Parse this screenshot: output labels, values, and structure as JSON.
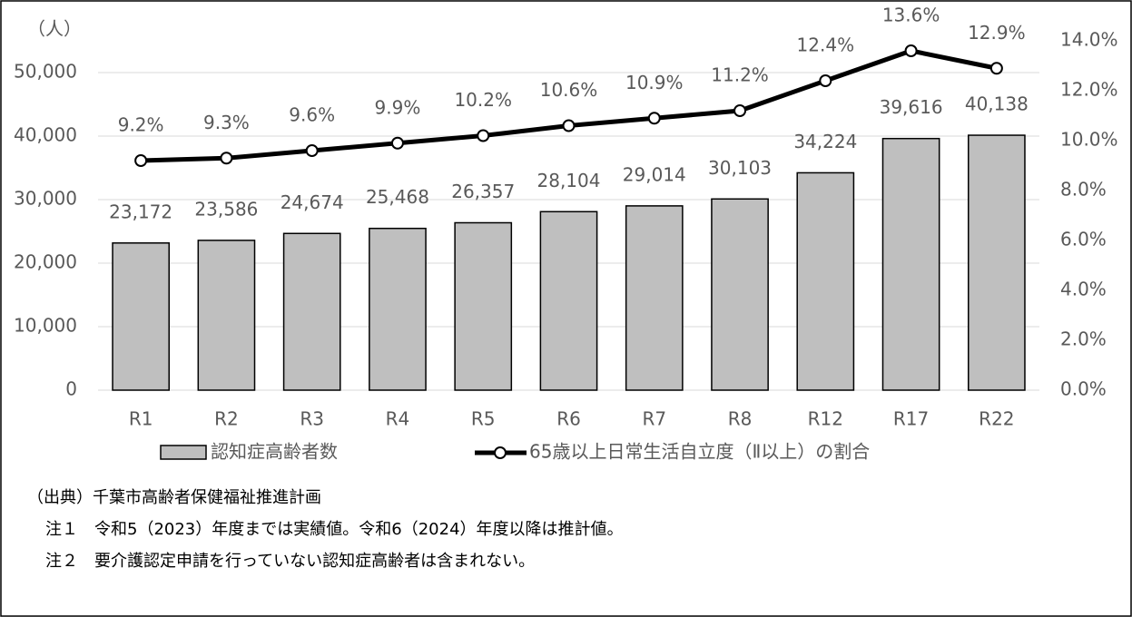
{
  "chart_data": {
    "type": "bar",
    "y_unit": "（人）",
    "categories": [
      "R1",
      "R2",
      "R3",
      "R4",
      "R5",
      "R6",
      "R7",
      "R8",
      "R12",
      "R17",
      "R22"
    ],
    "series": [
      {
        "name": "認知症高齢者数",
        "type": "bar",
        "color": "#bfbfbf",
        "values": [
          23172,
          23586,
          24674,
          25468,
          26357,
          28104,
          29014,
          30103,
          34224,
          39616,
          40138
        ],
        "value_labels": [
          "23,172",
          "23,586",
          "24,674",
          "25,468",
          "26,357",
          "28,104",
          "29,014",
          "30,103",
          "34,224",
          "39,616",
          "40,138"
        ]
      },
      {
        "name": "65歳以上日常生活自立度（Ⅱ以上）の割合",
        "type": "line",
        "color": "#000000",
        "axis": "y2",
        "values": [
          9.2,
          9.3,
          9.6,
          9.9,
          10.2,
          10.6,
          10.9,
          11.2,
          12.4,
          13.6,
          12.9
        ],
        "value_labels": [
          "9.2%",
          "9.3%",
          "9.6%",
          "9.9%",
          "10.2%",
          "10.6%",
          "10.9%",
          "11.2%",
          "12.4%",
          "13.6%",
          "12.9%"
        ]
      }
    ],
    "ylim": [
      0,
      55000
    ],
    "yticks": [
      0,
      {
        "value": 10000,
        "label": "10,000"
      },
      {
        "value": 20000,
        "label": "20,000"
      },
      {
        "value": 30000,
        "label": "30,000"
      },
      {
        "value": 40000,
        "label": "40,000"
      },
      {
        "value": 50000,
        "label": "50,000"
      }
    ],
    "y2lim": [
      0,
      14
    ],
    "y2ticks": [
      {
        "value": 0,
        "label": "0.0%"
      },
      {
        "value": 2,
        "label": "2.0%"
      },
      {
        "value": 4,
        "label": "4.0%"
      },
      {
        "value": 6,
        "label": "6.0%"
      },
      {
        "value": 8,
        "label": "8.0%"
      },
      {
        "value": 10,
        "label": "10.0%"
      },
      {
        "value": 12,
        "label": "12.0%"
      },
      {
        "value": 14,
        "label": "14.0%"
      }
    ],
    "grid": true,
    "legend": "bottom"
  },
  "notes": [
    "（出典）千葉市高齢者保健福祉推進計画",
    "注１　令和5（2023）年度までは実績値。令和6（2024）年度以降は推計値。",
    "注２　要介護認定申請を行っていない認知症高齢者は含まれない。"
  ]
}
